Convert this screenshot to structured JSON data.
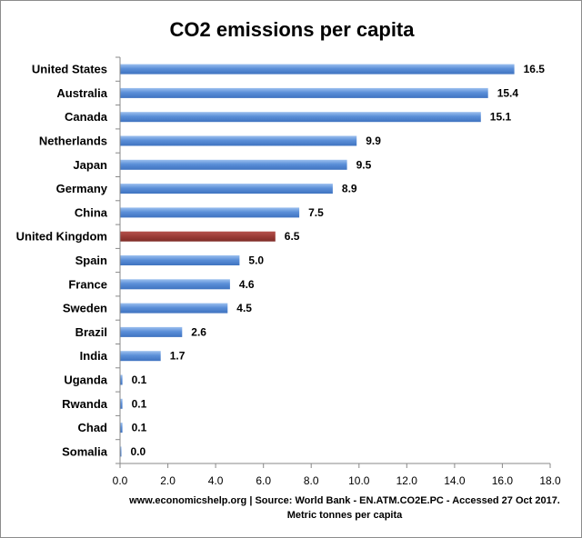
{
  "chart_data": {
    "type": "bar",
    "orientation": "horizontal",
    "title": "CO2 emissions per capita",
    "source": "www.economicshelp.org | Source: World Bank - EN.ATM.CO2E.PC - Accessed 27 Oct 2017.",
    "xlabel": "Metric tonnes per capita",
    "ylabel": "",
    "xlim": [
      0,
      18
    ],
    "x_ticks": [
      "0.0",
      "2.0",
      "4.0",
      "6.0",
      "8.0",
      "10.0",
      "12.0",
      "14.0",
      "16.0",
      "18.0"
    ],
    "grid": false,
    "categories": [
      "United States",
      "Australia",
      "Canada",
      "Netherlands",
      "Japan",
      "Germany",
      "China",
      "United Kingdom",
      "Spain",
      "France",
      "Sweden",
      "Brazil",
      "India",
      "Uganda",
      "Rwanda",
      "Chad",
      "Somalia"
    ],
    "values": [
      16.5,
      15.4,
      15.1,
      9.9,
      9.5,
      8.9,
      7.5,
      6.5,
      5.0,
      4.6,
      4.5,
      2.6,
      1.7,
      0.1,
      0.1,
      0.1,
      0.0
    ],
    "value_labels": [
      "16.5",
      "15.4",
      "15.1",
      "9.9",
      "9.5",
      "8.9",
      "7.5",
      "6.5",
      "5.0",
      "4.6",
      "4.5",
      "2.6",
      "1.7",
      "0.1",
      "0.1",
      "0.1",
      "0.0"
    ],
    "bar_color": "#5b8fd8",
    "highlight_category": "United Kingdom",
    "highlight_color": "#9b3b36"
  }
}
